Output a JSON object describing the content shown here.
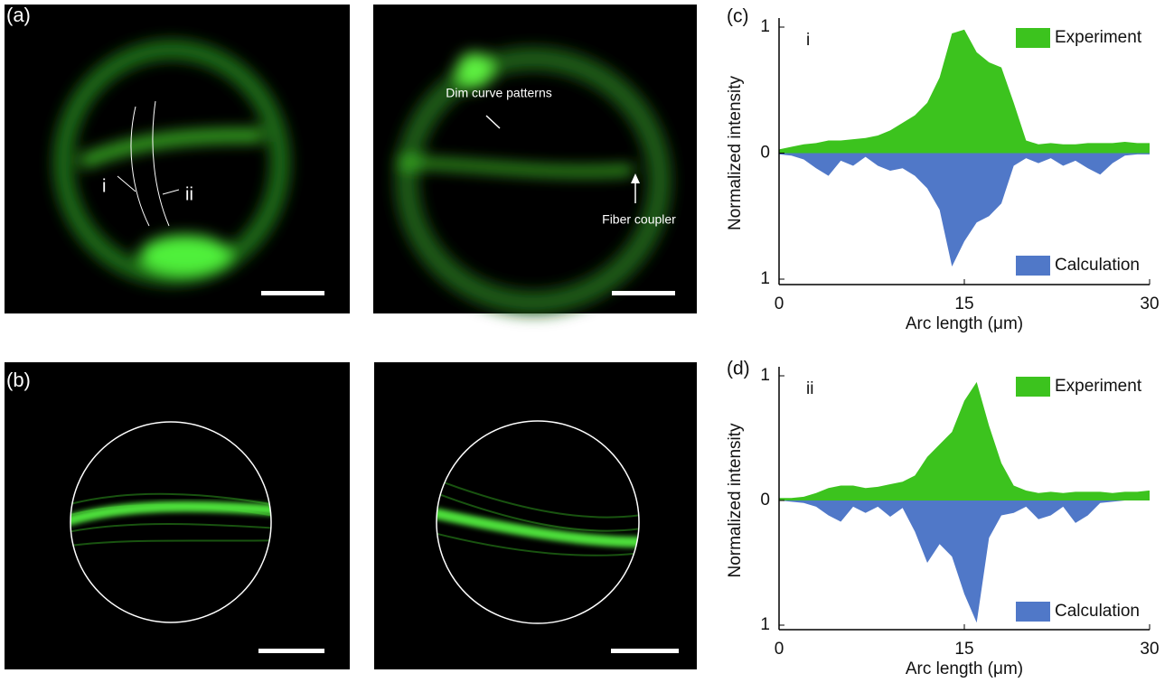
{
  "images": {
    "panel_a": "(a)",
    "panel_b": "(b)",
    "cut_i": "i",
    "cut_ii": "ii",
    "note_dim": "Dim curve patterns",
    "note_fiber": "Fiber coupler"
  },
  "chart_data": [
    {
      "type": "mirrored-area",
      "panel_label": "(c)",
      "annotation": "i",
      "xlabel": "Arc length (μm)",
      "ylabel": "Normalized intensity",
      "xlim": [
        0,
        30
      ],
      "xticks": [
        0,
        15,
        30
      ],
      "ylim": [
        -1,
        1
      ],
      "yticks": [
        1,
        0,
        {
          "value": -1,
          "label": "1"
        }
      ],
      "x": [
        0,
        1,
        2,
        3,
        4,
        5,
        6,
        7,
        8,
        9,
        10,
        11,
        12,
        13,
        14,
        15,
        16,
        17,
        18,
        19,
        20,
        21,
        22,
        23,
        24,
        25,
        26,
        27,
        28,
        29,
        30
      ],
      "series": [
        {
          "name": "Experiment",
          "color": "#3cc31e",
          "inverted": false,
          "legend": "upper right",
          "values": [
            0.03,
            0.05,
            0.07,
            0.08,
            0.1,
            0.1,
            0.11,
            0.12,
            0.14,
            0.18,
            0.24,
            0.3,
            0.4,
            0.6,
            0.95,
            0.98,
            0.8,
            0.72,
            0.68,
            0.4,
            0.1,
            0.07,
            0.08,
            0.07,
            0.07,
            0.08,
            0.08,
            0.08,
            0.09,
            0.08,
            0.08
          ]
        },
        {
          "name": "Calculation",
          "color": "#5078c8",
          "inverted": true,
          "legend": "lower right",
          "values": [
            0.01,
            0.02,
            0.05,
            0.12,
            0.18,
            0.06,
            0.1,
            0.03,
            0.1,
            0.14,
            0.12,
            0.18,
            0.28,
            0.45,
            0.9,
            0.7,
            0.55,
            0.5,
            0.4,
            0.1,
            0.04,
            0.08,
            0.04,
            0.1,
            0.06,
            0.12,
            0.17,
            0.08,
            0.02,
            0.01,
            0.01
          ]
        }
      ]
    },
    {
      "type": "mirrored-area",
      "panel_label": "(d)",
      "annotation": "ii",
      "xlabel": "Arc length (μm)",
      "ylabel": "Normalized intensity",
      "xlim": [
        0,
        30
      ],
      "xticks": [
        0,
        15,
        30
      ],
      "ylim": [
        -1,
        1
      ],
      "yticks": [
        1,
        0,
        {
          "value": -1,
          "label": "1"
        }
      ],
      "x": [
        0,
        1,
        2,
        3,
        4,
        5,
        6,
        7,
        8,
        9,
        10,
        11,
        12,
        13,
        14,
        15,
        16,
        17,
        18,
        19,
        20,
        21,
        22,
        23,
        24,
        25,
        26,
        27,
        28,
        29,
        30
      ],
      "series": [
        {
          "name": "Experiment",
          "color": "#3cc31e",
          "inverted": false,
          "legend": "upper right",
          "values": [
            0.02,
            0.02,
            0.03,
            0.06,
            0.1,
            0.12,
            0.12,
            0.1,
            0.11,
            0.13,
            0.15,
            0.2,
            0.35,
            0.45,
            0.55,
            0.8,
            0.95,
            0.6,
            0.3,
            0.12,
            0.08,
            0.06,
            0.07,
            0.06,
            0.07,
            0.07,
            0.07,
            0.06,
            0.07,
            0.07,
            0.08
          ]
        },
        {
          "name": "Calculation",
          "color": "#5078c8",
          "inverted": true,
          "legend": "lower right",
          "values": [
            0,
            0.01,
            0.02,
            0.05,
            0.12,
            0.17,
            0.05,
            0.1,
            0.05,
            0.13,
            0.06,
            0.25,
            0.5,
            0.35,
            0.45,
            0.75,
            0.98,
            0.3,
            0.12,
            0.1,
            0.05,
            0.15,
            0.12,
            0.05,
            0.18,
            0.12,
            0.02,
            0.01,
            0,
            0,
            0
          ]
        }
      ]
    }
  ]
}
